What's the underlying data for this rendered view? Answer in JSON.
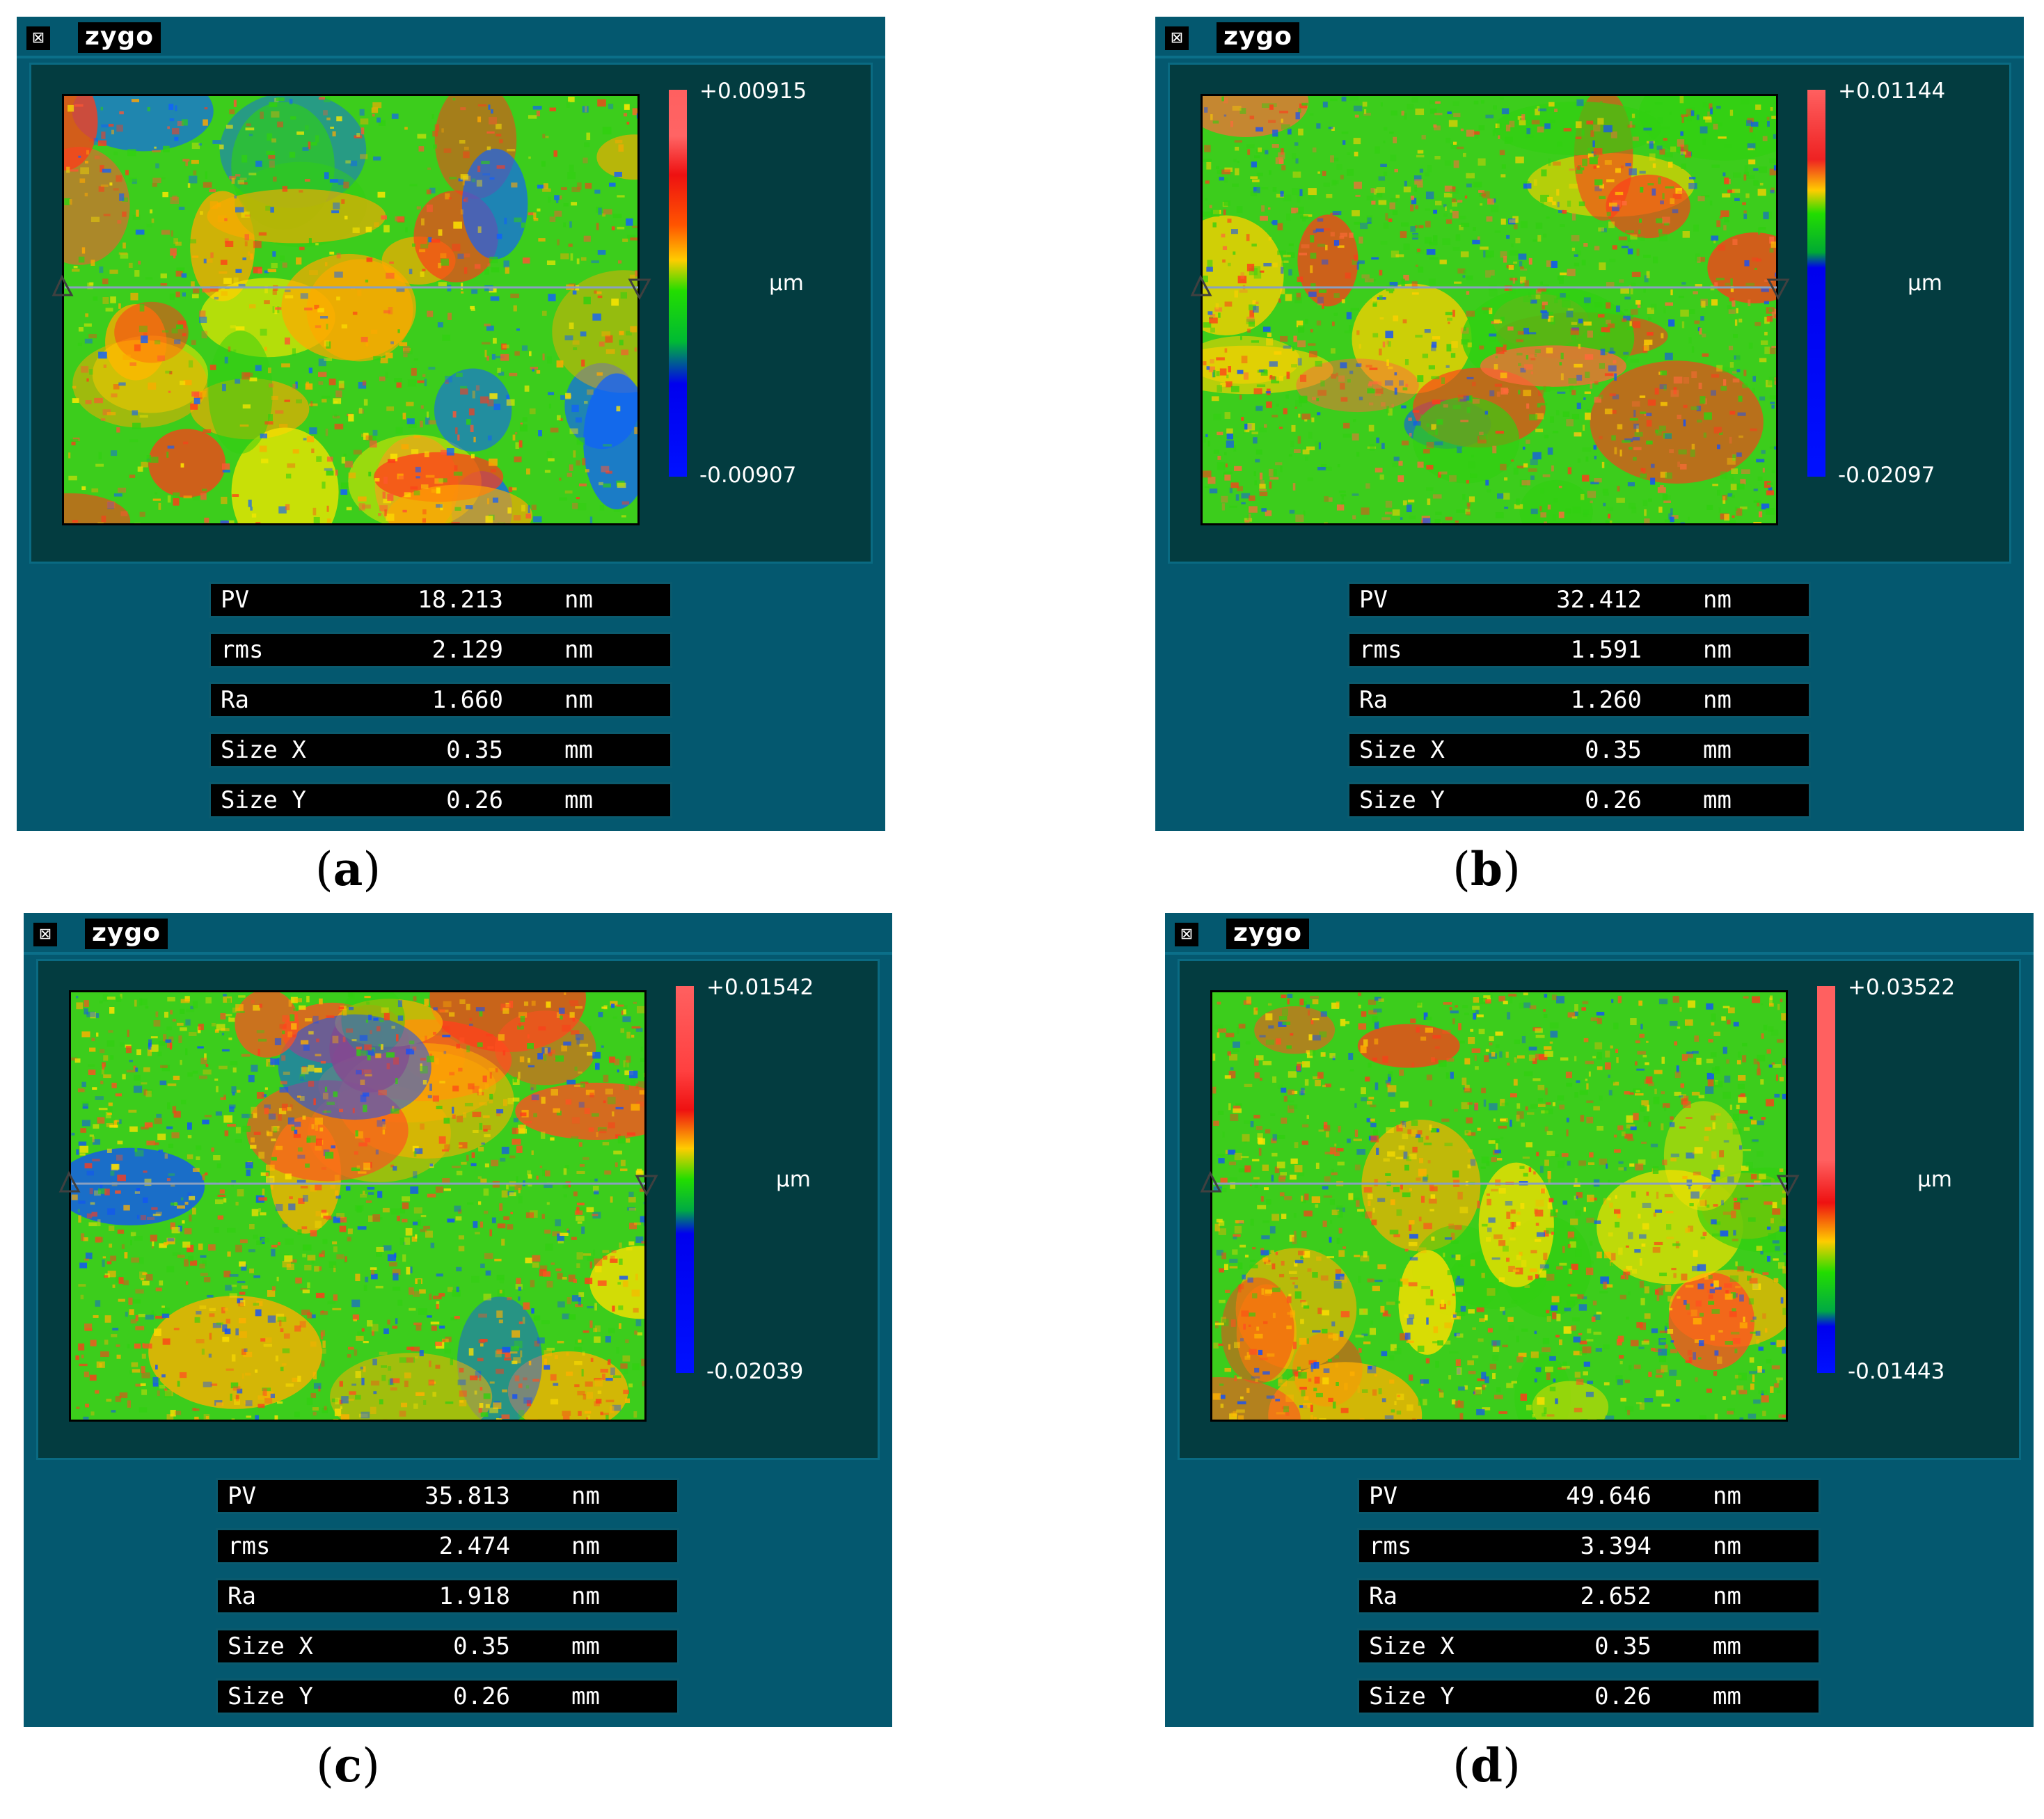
{
  "app_name": "zygo",
  "close_glyph": "⊠",
  "caption_parens": [
    "(",
    ")"
  ],
  "panels": [
    {
      "caption": "a",
      "scale_max": "+0.00915",
      "scale_min": "-0.00907",
      "unit": "µm",
      "colorbar_stops": [
        {
          "offset": 0,
          "color": "#ff6060"
        },
        {
          "offset": 0.12,
          "color": "#ff6464"
        },
        {
          "offset": 0.22,
          "color": "#ee1111"
        },
        {
          "offset": 0.35,
          "color": "#ff5500"
        },
        {
          "offset": 0.44,
          "color": "#ffcc00"
        },
        {
          "offset": 0.52,
          "color": "#22dd00"
        },
        {
          "offset": 0.65,
          "color": "#00bb33"
        },
        {
          "offset": 0.76,
          "color": "#0000ee"
        },
        {
          "offset": 1,
          "color": "#0011ff"
        }
      ],
      "stats": [
        {
          "name": "PV",
          "value": "18.213",
          "unit": "nm"
        },
        {
          "name": "rms",
          "value": "2.129",
          "unit": "nm"
        },
        {
          "name": "Ra",
          "value": "1.660",
          "unit": "nm"
        },
        {
          "name": "Size X",
          "value": "0.35",
          "unit": "mm"
        },
        {
          "name": "Size Y",
          "value": "0.26",
          "unit": "mm"
        }
      ]
    },
    {
      "caption": "b",
      "scale_max": "+0.01144",
      "scale_min": "-0.02097",
      "unit": "µm",
      "colorbar_stops": [
        {
          "offset": 0,
          "color": "#ff6060"
        },
        {
          "offset": 0.18,
          "color": "#ee2222"
        },
        {
          "offset": 0.26,
          "color": "#ffcc00"
        },
        {
          "offset": 0.32,
          "color": "#22dd00"
        },
        {
          "offset": 0.42,
          "color": "#00aa33"
        },
        {
          "offset": 0.46,
          "color": "#0000ee"
        },
        {
          "offset": 1,
          "color": "#0011ff"
        }
      ],
      "stats": [
        {
          "name": "PV",
          "value": "32.412",
          "unit": "nm"
        },
        {
          "name": "rms",
          "value": "1.591",
          "unit": "nm"
        },
        {
          "name": "Ra",
          "value": "1.260",
          "unit": "nm"
        },
        {
          "name": "Size X",
          "value": "0.35",
          "unit": "mm"
        },
        {
          "name": "Size Y",
          "value": "0.26",
          "unit": "mm"
        }
      ]
    },
    {
      "caption": "c",
      "scale_max": "+0.01542",
      "scale_min": "-0.02039",
      "unit": "µm",
      "colorbar_stops": [
        {
          "offset": 0,
          "color": "#ff6060"
        },
        {
          "offset": 0.22,
          "color": "#ff4040"
        },
        {
          "offset": 0.32,
          "color": "#ee1111"
        },
        {
          "offset": 0.42,
          "color": "#ffcc00"
        },
        {
          "offset": 0.5,
          "color": "#22dd00"
        },
        {
          "offset": 0.58,
          "color": "#00aa44"
        },
        {
          "offset": 0.64,
          "color": "#0000ee"
        },
        {
          "offset": 1,
          "color": "#0011ff"
        }
      ],
      "stats": [
        {
          "name": "PV",
          "value": "35.813",
          "unit": "nm"
        },
        {
          "name": "rms",
          "value": "2.474",
          "unit": "nm"
        },
        {
          "name": "Ra",
          "value": "1.918",
          "unit": "nm"
        },
        {
          "name": "Size X",
          "value": "0.35",
          "unit": "mm"
        },
        {
          "name": "Size Y",
          "value": "0.26",
          "unit": "mm"
        }
      ]
    },
    {
      "caption": "d",
      "scale_max": "+0.03522",
      "scale_min": "-0.01443",
      "unit": "µm",
      "colorbar_stops": [
        {
          "offset": 0,
          "color": "#ff6060"
        },
        {
          "offset": 0.45,
          "color": "#ff6060"
        },
        {
          "offset": 0.56,
          "color": "#ee1111"
        },
        {
          "offset": 0.66,
          "color": "#ffcc00"
        },
        {
          "offset": 0.74,
          "color": "#22dd00"
        },
        {
          "offset": 0.84,
          "color": "#00aa44"
        },
        {
          "offset": 0.88,
          "color": "#0000ee"
        },
        {
          "offset": 1,
          "color": "#0011ff"
        }
      ],
      "stats": [
        {
          "name": "PV",
          "value": "49.646",
          "unit": "nm"
        },
        {
          "name": "rms",
          "value": "3.394",
          "unit": "nm"
        },
        {
          "name": "Ra",
          "value": "2.652",
          "unit": "nm"
        },
        {
          "name": "Size X",
          "value": "0.35",
          "unit": "mm"
        },
        {
          "name": "Size Y",
          "value": "0.26",
          "unit": "mm"
        }
      ]
    }
  ]
}
